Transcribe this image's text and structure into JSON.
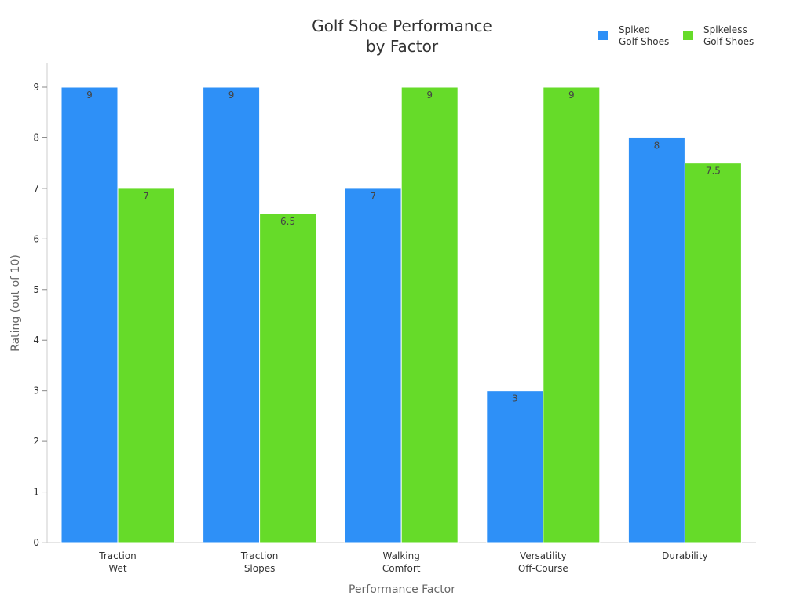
{
  "chart_data": {
    "type": "bar",
    "title": [
      "Golf Shoe Performance",
      "by Factor"
    ],
    "xlabel": "Performance Factor",
    "ylabel": "Rating (out of 10)",
    "ylim": [
      0,
      9
    ],
    "yticks": [
      0,
      1,
      2,
      3,
      4,
      5,
      6,
      7,
      8,
      9
    ],
    "grid": false,
    "legend_position": "top-right",
    "categories": [
      [
        "Traction",
        "Wet"
      ],
      [
        "Traction",
        "Slopes"
      ],
      [
        "Walking",
        "Comfort"
      ],
      [
        "Versatility",
        "Off-Course"
      ],
      [
        "Durability"
      ]
    ],
    "series": [
      {
        "name": [
          "Spiked",
          "Golf Shoes"
        ],
        "color": "#2e90f7",
        "values": [
          9,
          9,
          7,
          3,
          8
        ],
        "labels": [
          "9",
          "9",
          "7",
          "3",
          "8"
        ]
      },
      {
        "name": [
          "Spikeless",
          "Golf Shoes"
        ],
        "color": "#66db29",
        "values": [
          7,
          6.5,
          9,
          9,
          7.5
        ],
        "labels": [
          "7",
          "6.5",
          "9",
          "9",
          "7.5"
        ]
      }
    ]
  }
}
